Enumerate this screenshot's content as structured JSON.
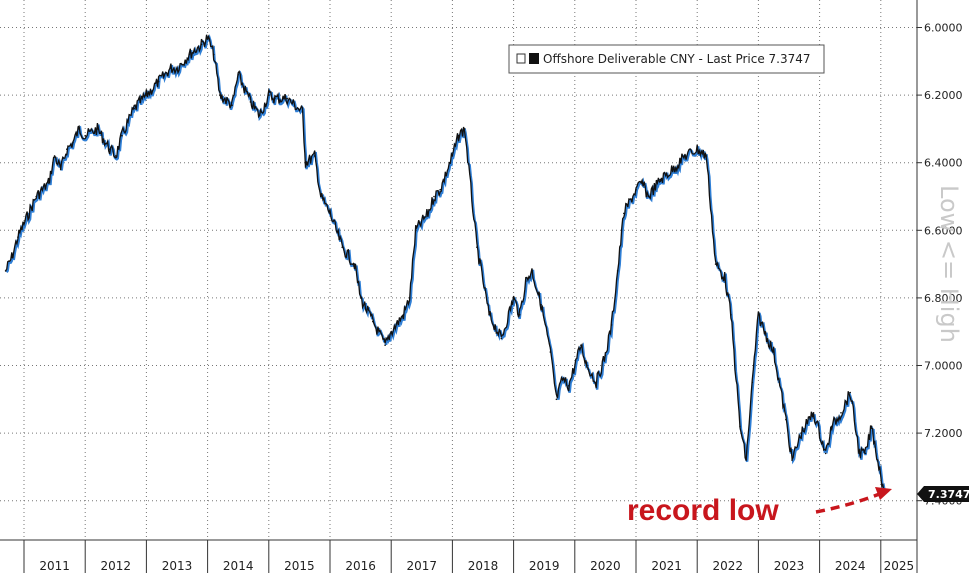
{
  "chart_data": {
    "type": "line",
    "title": "",
    "ylabel": "Low <= High",
    "y_inverted": true,
    "ylim": [
      5.95,
      7.45
    ],
    "y_ticks": [
      "6.0000",
      "6.2000",
      "6.4000",
      "6.6000",
      "6.8000",
      "7.0000",
      "7.2000",
      "7.4000"
    ],
    "x_ticks": [
      "2011",
      "2012",
      "2013",
      "2014",
      "2015",
      "2016",
      "2017",
      "2018",
      "2019",
      "2020",
      "2021",
      "2022",
      "2023",
      "2024",
      "2025"
    ],
    "grid": true,
    "legend": {
      "placement": "top-right",
      "label": "Offshore Deliverable CNY - Last Price 7.3747"
    },
    "last_price_label": "7.3747",
    "last_price": 7.3747,
    "line_colors": {
      "main": "#111111",
      "accent": "#2f7fd6"
    },
    "annotation": {
      "text": "record low",
      "color": "#c8161d"
    },
    "series": [
      {
        "name": "Offshore Deliverable CNY",
        "x": [
          2010.7,
          2010.8,
          2010.9,
          2011.0,
          2011.2,
          2011.4,
          2011.5,
          2011.6,
          2011.7,
          2011.8,
          2011.9,
          2012.0,
          2012.2,
          2012.4,
          2012.5,
          2012.6,
          2012.8,
          2012.9,
          2013.0,
          2013.2,
          2013.4,
          2013.5,
          2013.7,
          2013.9,
          2014.0,
          2014.1,
          2014.2,
          2014.4,
          2014.5,
          2014.6,
          2014.7,
          2014.85,
          2015.0,
          2015.1,
          2015.3,
          2015.55,
          2015.6,
          2015.75,
          2015.85,
          2016.0,
          2016.2,
          2016.4,
          2016.5,
          2016.7,
          2016.9,
          2017.0,
          2017.2,
          2017.3,
          2017.4,
          2017.6,
          2017.7,
          2017.8,
          2018.0,
          2018.1,
          2018.2,
          2018.4,
          2018.6,
          2018.8,
          2019.0,
          2019.1,
          2019.2,
          2019.3,
          2019.45,
          2019.6,
          2019.7,
          2019.8,
          2019.9,
          2020.1,
          2020.2,
          2020.35,
          2020.5,
          2020.6,
          2020.7,
          2020.8,
          2021.0,
          2021.1,
          2021.2,
          2021.4,
          2021.6,
          2021.8,
          2022.0,
          2022.15,
          2022.3,
          2022.45,
          2022.55,
          2022.7,
          2022.8,
          2022.9,
          2023.0,
          2023.1,
          2023.25,
          2023.45,
          2023.55,
          2023.7,
          2023.9,
          2024.0,
          2024.1,
          2024.2,
          2024.35,
          2024.5,
          2024.65,
          2024.75,
          2024.85,
          2024.95,
          2025.05
        ],
        "values": [
          6.72,
          6.68,
          6.62,
          6.58,
          6.5,
          6.46,
          6.38,
          6.42,
          6.36,
          6.34,
          6.3,
          6.32,
          6.3,
          6.36,
          6.38,
          6.32,
          6.24,
          6.22,
          6.2,
          6.16,
          6.12,
          6.12,
          6.08,
          6.05,
          6.03,
          6.08,
          6.2,
          6.23,
          6.14,
          6.18,
          6.22,
          6.26,
          6.2,
          6.21,
          6.21,
          6.25,
          6.4,
          6.38,
          6.5,
          6.55,
          6.65,
          6.7,
          6.8,
          6.87,
          6.94,
          6.9,
          6.85,
          6.8,
          6.6,
          6.55,
          6.5,
          6.48,
          6.38,
          6.32,
          6.3,
          6.65,
          6.85,
          6.92,
          6.8,
          6.85,
          6.75,
          6.72,
          6.82,
          6.96,
          7.1,
          7.04,
          7.06,
          6.94,
          7.0,
          7.05,
          6.97,
          6.88,
          6.72,
          6.55,
          6.48,
          6.46,
          6.5,
          6.45,
          6.42,
          6.38,
          6.36,
          6.38,
          6.7,
          6.74,
          6.85,
          7.18,
          7.28,
          7.05,
          6.85,
          6.9,
          6.96,
          7.16,
          7.28,
          7.2,
          7.14,
          7.2,
          7.26,
          7.18,
          7.14,
          7.08,
          7.26,
          7.26,
          7.18,
          7.28,
          7.37
        ]
      }
    ]
  }
}
